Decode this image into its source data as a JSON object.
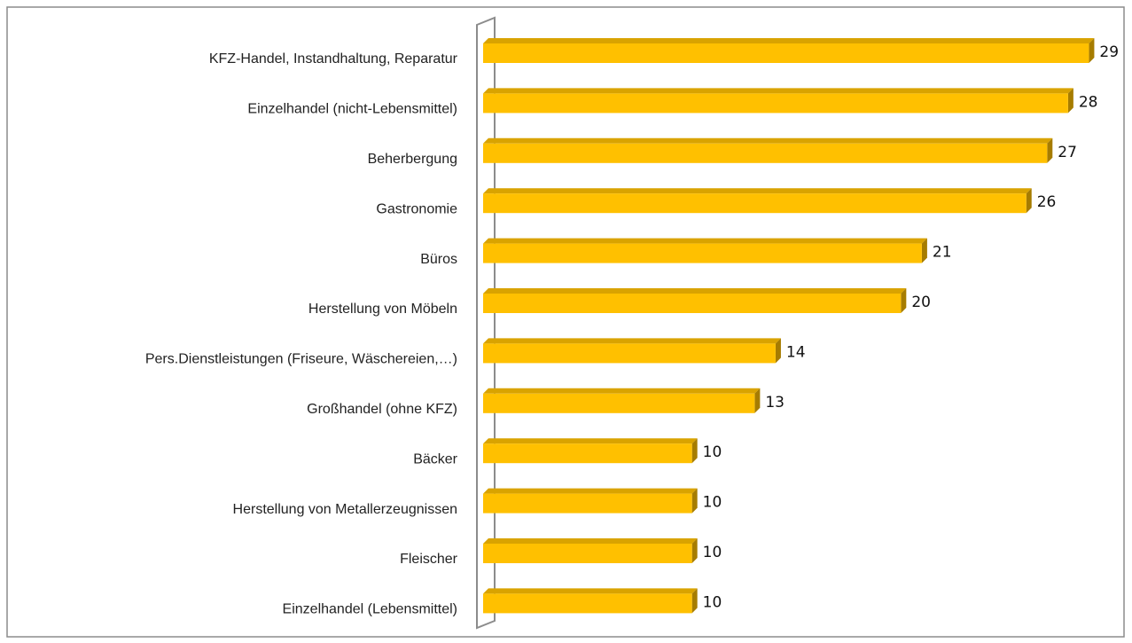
{
  "chart_data": {
    "type": "bar",
    "orientation": "horizontal",
    "categories": [
      "KFZ-Handel, Instandhaltung, Reparatur",
      "Einzelhandel (nicht-Lebensmittel)",
      "Beherbergung",
      "Gastronomie",
      "Büros",
      "Herstellung von Möbeln",
      "Pers.Dienstleistungen (Friseure, Wäschereien,…)",
      "Großhandel (ohne KFZ)",
      "Bäcker",
      "Herstellung von Metallerzeugnissen",
      "Fleischer",
      "Einzelhandel (Lebensmittel)"
    ],
    "values": [
      29,
      28,
      27,
      26,
      21,
      20,
      14,
      13,
      10,
      10,
      10,
      10
    ],
    "color": "#ffc000",
    "xlim": [
      0,
      30
    ]
  }
}
